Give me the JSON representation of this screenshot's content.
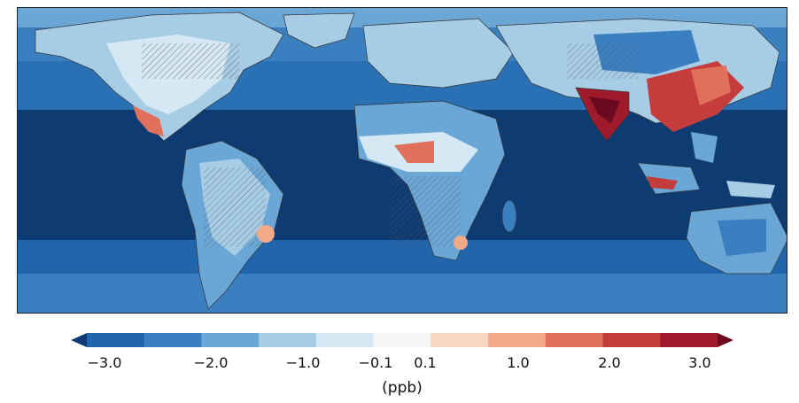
{
  "colors": {
    "ocean_deep": "#0f3b73",
    "ocean_mid": "#2166ac",
    "blue_3": "#3a7fc0",
    "blue_2": "#6aa6d6",
    "blue_1": "#a6cce6",
    "pale_blue": "#d6e8f3",
    "white": "#f6f6f6",
    "pale_red": "#f9d6c4",
    "red_1": "#f3a987",
    "red_2": "#e0705a",
    "red_3": "#c43c3c",
    "red_4": "#9f1b2c",
    "darkest_red": "#6b0a1f"
  },
  "colorbar": {
    "bins": [
      "#0f3b73",
      "#2166ac",
      "#3a7fc0",
      "#6aa6d6",
      "#a6cce6",
      "#d6e8f3",
      "#f6f6f6",
      "#f9d6c4",
      "#f3a987",
      "#e0705a",
      "#c43c3c",
      "#9f1b2c",
      "#6b0a1f"
    ],
    "tick_labels": [
      "−3.0",
      "−2.0",
      "−1.0",
      "−0.1",
      "0.1",
      "1.0",
      "2.0",
      "3.0"
    ],
    "tick_values": [
      -3.0,
      -2.0,
      -1.0,
      -0.1,
      0.1,
      1.0,
      2.0,
      3.0
    ],
    "extend": "both",
    "unit": "(ppb)"
  }
}
